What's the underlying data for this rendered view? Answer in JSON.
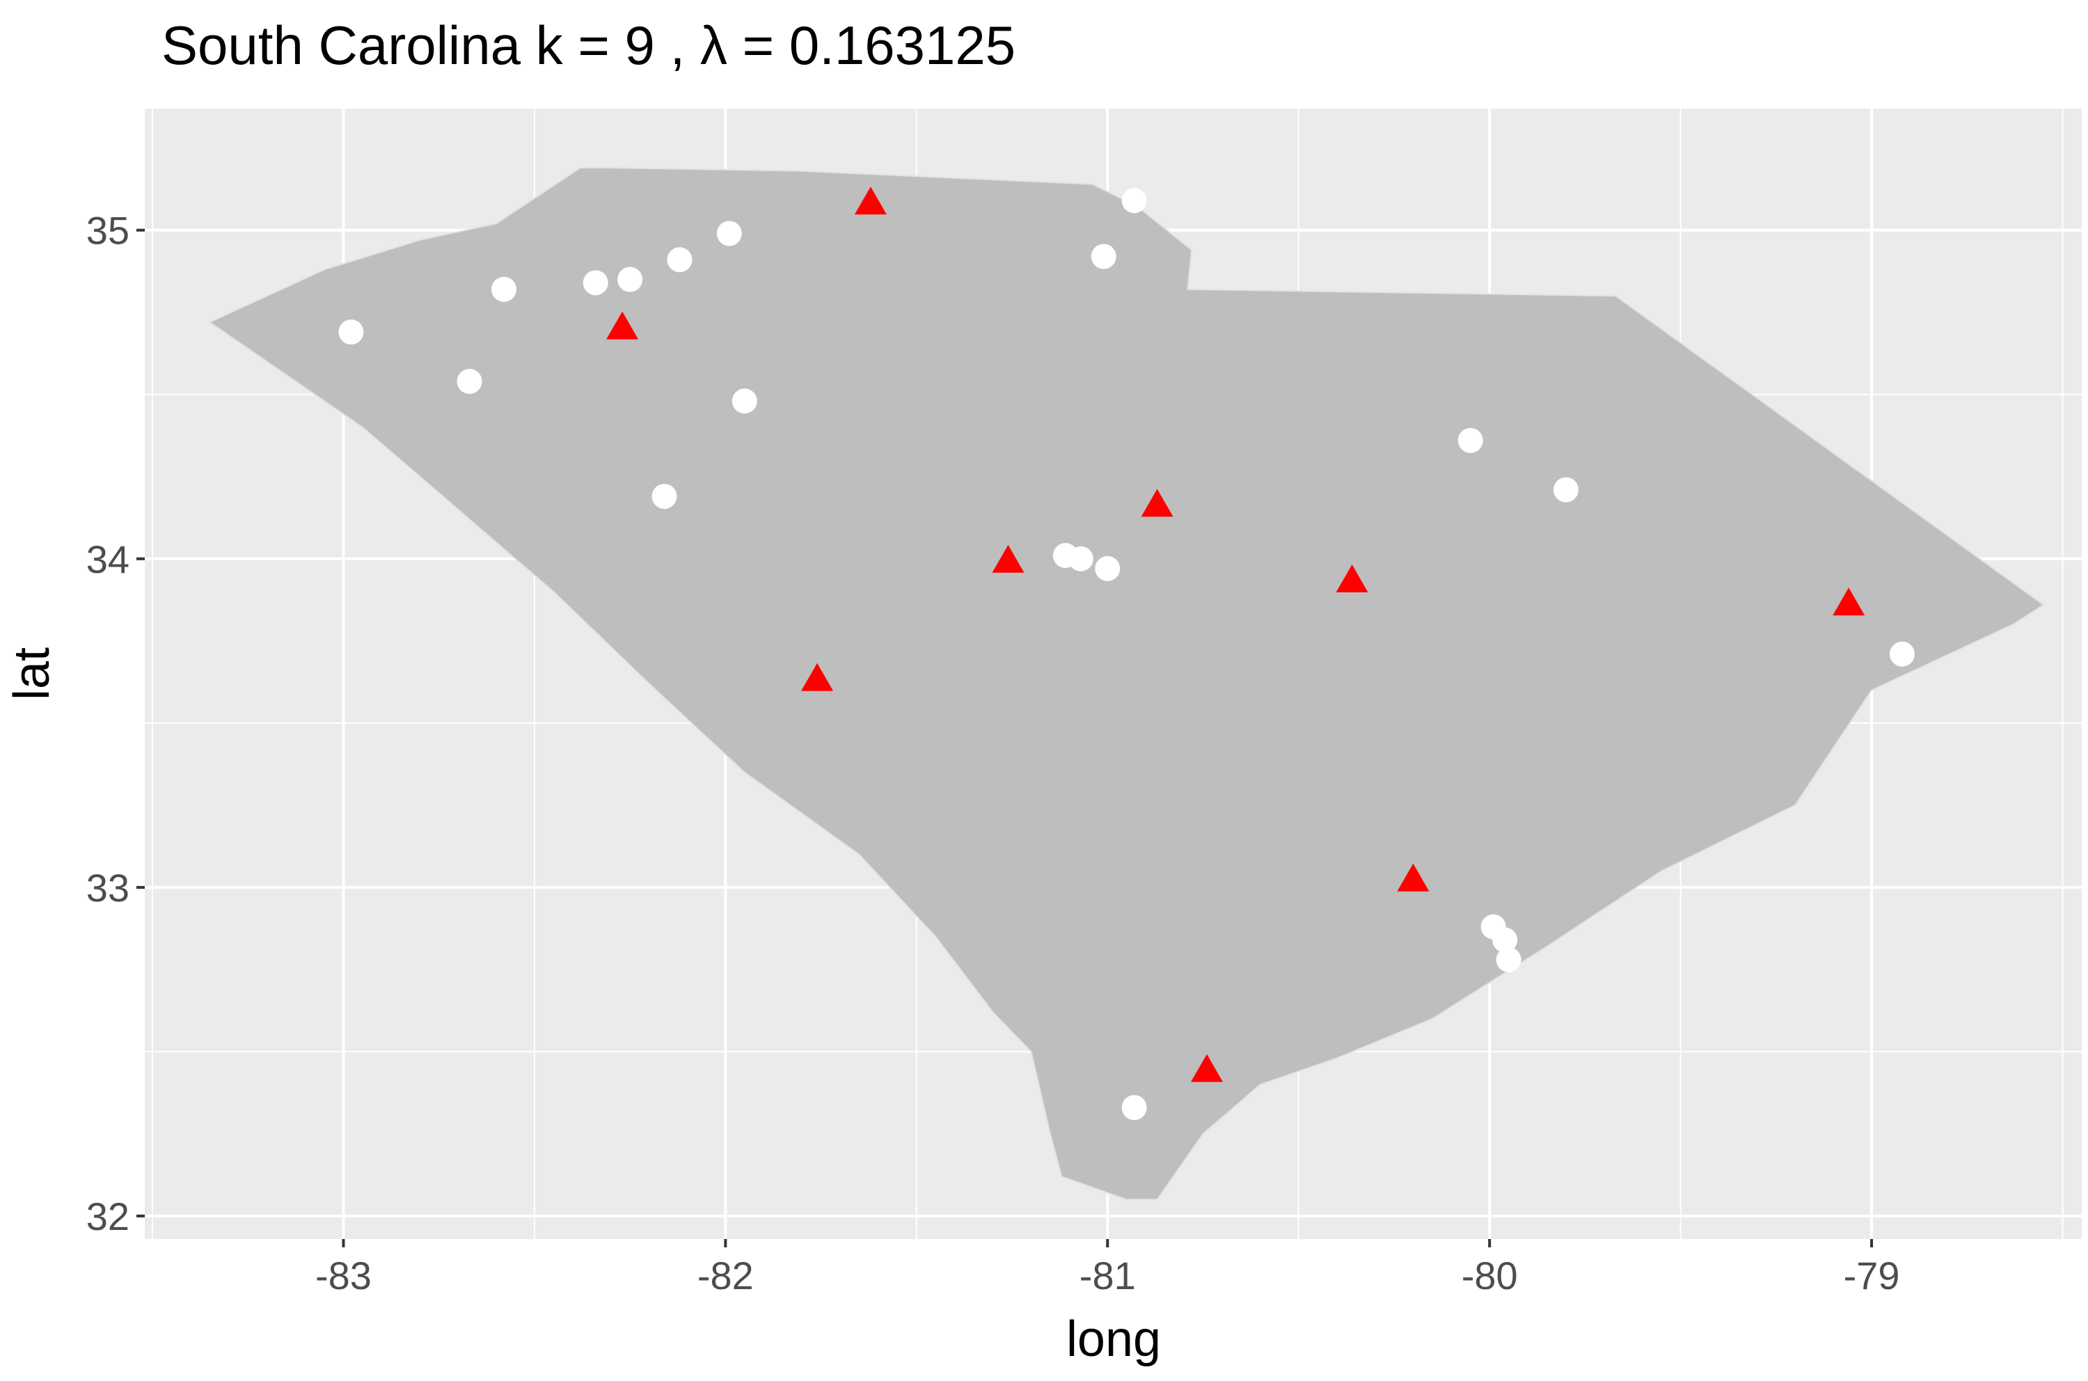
{
  "chart_data": {
    "type": "scatter",
    "title": "South Carolina  k =  9 ,  λ  =  0.163125",
    "xlabel": "long",
    "ylabel": "lat",
    "xlim": [
      -83.52,
      -78.45
    ],
    "ylim": [
      31.93,
      35.37
    ],
    "x_ticks": [
      -83,
      -82,
      -81,
      -80,
      -79
    ],
    "x_tick_labels": [
      "-83",
      "-82",
      "-81",
      "-80",
      "-79"
    ],
    "y_ticks": [
      32,
      33,
      34,
      35
    ],
    "y_tick_labels": [
      "32",
      "33",
      "34",
      "35"
    ],
    "grid": true,
    "legend": "none",
    "panel_background": "#ebebeb",
    "region_fill": "#bebebe",
    "state_outline": [
      [
        -83.35,
        34.72
      ],
      [
        -83.05,
        34.88
      ],
      [
        -82.8,
        34.97
      ],
      [
        -82.6,
        35.02
      ],
      [
        -82.38,
        35.19
      ],
      [
        -82.3,
        35.19
      ],
      [
        -81.8,
        35.18
      ],
      [
        -81.04,
        35.14
      ],
      [
        -80.97,
        35.1
      ],
      [
        -80.93,
        35.08
      ],
      [
        -80.78,
        34.94
      ],
      [
        -80.79,
        34.82
      ],
      [
        -79.67,
        34.8
      ],
      [
        -78.55,
        33.86
      ],
      [
        -78.63,
        33.8
      ],
      [
        -79.0,
        33.6
      ],
      [
        -79.2,
        33.25
      ],
      [
        -79.55,
        33.05
      ],
      [
        -79.85,
        32.82
      ],
      [
        -80.15,
        32.6
      ],
      [
        -80.4,
        32.48
      ],
      [
        -80.6,
        32.4
      ],
      [
        -80.75,
        32.25
      ],
      [
        -80.87,
        32.05
      ],
      [
        -80.95,
        32.05
      ],
      [
        -81.12,
        32.12
      ],
      [
        -81.15,
        32.25
      ],
      [
        -81.2,
        32.5
      ],
      [
        -81.3,
        32.62
      ],
      [
        -81.45,
        32.85
      ],
      [
        -81.65,
        33.1
      ],
      [
        -81.95,
        33.35
      ],
      [
        -82.2,
        33.62
      ],
      [
        -82.45,
        33.9
      ],
      [
        -82.75,
        34.2
      ],
      [
        -82.95,
        34.4
      ],
      [
        -83.1,
        34.52
      ],
      [
        -83.35,
        34.72
      ]
    ],
    "series": [
      {
        "marker": "circle",
        "color": "#ffffff",
        "x": [
          -82.98,
          -82.67,
          -82.58,
          -82.34,
          -82.25,
          -82.12,
          -81.99,
          -81.95,
          -82.16,
          -81.11,
          -81.07,
          -81.0,
          -81.01,
          -80.93,
          -80.05,
          -79.8,
          -79.99,
          -79.96,
          -79.95,
          -78.92,
          -80.93
        ],
        "y": [
          34.69,
          34.54,
          34.82,
          34.84,
          34.85,
          34.91,
          34.99,
          34.48,
          34.19,
          34.01,
          34.0,
          33.97,
          34.92,
          35.09,
          34.36,
          34.21,
          32.88,
          32.84,
          32.78,
          33.71,
          32.33
        ]
      },
      {
        "marker": "triangle",
        "color": "#ff0000",
        "x": [
          -81.62,
          -82.27,
          -80.87,
          -81.26,
          -80.36,
          -81.76,
          -79.06,
          -80.2,
          -80.74
        ],
        "y": [
          35.08,
          34.7,
          34.16,
          33.99,
          33.93,
          33.63,
          33.86,
          33.02,
          32.44
        ]
      }
    ]
  }
}
